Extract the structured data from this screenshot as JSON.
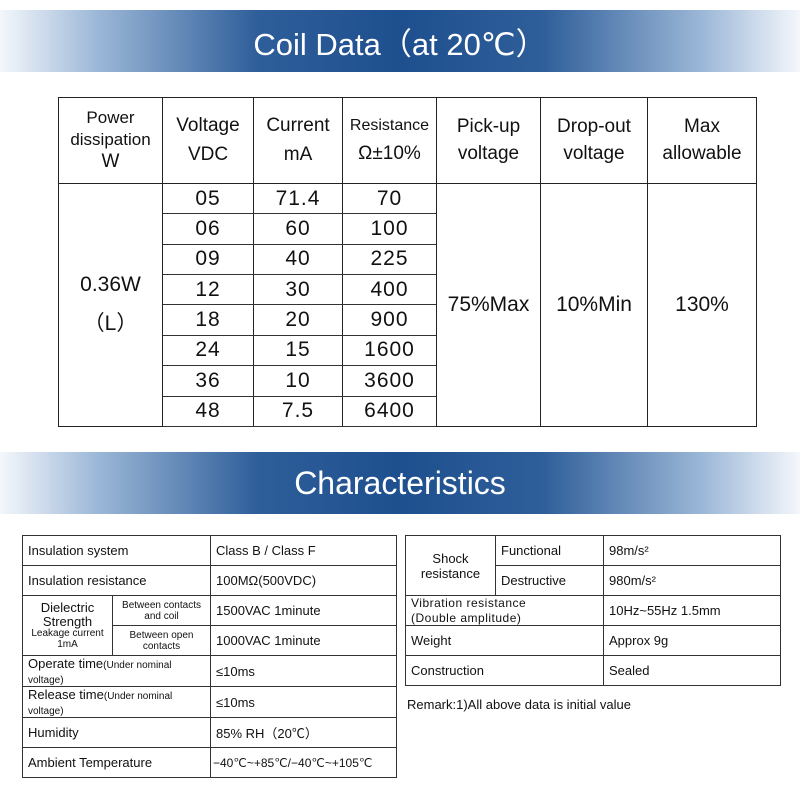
{
  "coil_banner": {
    "title": "Coil Data（at 20℃）"
  },
  "coil_table": {
    "headers": {
      "power_l1": "Power",
      "power_l2": "dissipation",
      "power_l3": "W",
      "voltage_l1": "Voltage",
      "voltage_l2": "VDC",
      "current_l1": "Current",
      "current_l2": "mA",
      "resistance_l1": "Resistance",
      "resistance_l2": "Ω±10%",
      "pickup_l1": "Pick-up",
      "pickup_l2": "voltage",
      "dropout_l1": "Drop-out",
      "dropout_l2": "voltage",
      "max_l1": "Max",
      "max_l2": "allowable"
    },
    "power_value": "0.36W",
    "power_sub": "（L）",
    "pickup_value": "75%Max",
    "dropout_value": "10%Min",
    "max_value": "130%",
    "rows": [
      {
        "voltage": "05",
        "current": "71.4",
        "resistance": "70"
      },
      {
        "voltage": "06",
        "current": "60",
        "resistance": "100"
      },
      {
        "voltage": "09",
        "current": "40",
        "resistance": "225"
      },
      {
        "voltage": "12",
        "current": "30",
        "resistance": "400"
      },
      {
        "voltage": "18",
        "current": "20",
        "resistance": "900"
      },
      {
        "voltage": "24",
        "current": "15",
        "resistance": "1600"
      },
      {
        "voltage": "36",
        "current": "10",
        "resistance": "3600"
      },
      {
        "voltage": "48",
        "current": "7.5",
        "resistance": "6400"
      }
    ]
  },
  "char_banner": {
    "title": "Characteristics"
  },
  "char_left": {
    "insulation_system": {
      "label": "Insulation system",
      "value": "Class B / Class F"
    },
    "insulation_resistance": {
      "label": "Insulation resistance",
      "value": "100MΩ(500VDC)"
    },
    "dielectric": {
      "label_l1": "Dielectric",
      "label_l2": "Strength",
      "leak_l1": "Leakage current",
      "leak_l2": "1mA",
      "contacts_coil_l1": "Between contacts",
      "contacts_coil_l2": "and coil",
      "contacts_coil_value": "1500VAC 1minute",
      "open_contacts_l1": "Between open",
      "open_contacts_l2": "contacts",
      "open_contacts_value": "1000VAC 1minute"
    },
    "operate": {
      "label": "Operate time",
      "label_small": "(Under nominal voltage)",
      "value": "≤10ms"
    },
    "release": {
      "label": "Release time",
      "label_small": "(Under nominal voltage)",
      "value": "≤10ms"
    },
    "humidity": {
      "label": "Humidity",
      "value": "85% RH（20℃）"
    },
    "ambient": {
      "label": "Ambient Temperature",
      "value": "−40℃~+85℃/−40℃~+105℃"
    }
  },
  "char_right": {
    "shock": {
      "label_l1": "Shock",
      "label_l2": "resistance",
      "functional_label": "Functional",
      "functional_value": "98m/s²",
      "destructive_label": "Destructive",
      "destructive_value": "980m/s²"
    },
    "vibration": {
      "label_l1": "Vibration resistance",
      "label_l2": "(Double amplitude)",
      "value": "10Hz~55Hz 1.5mm"
    },
    "weight": {
      "label": "Weight",
      "value": "Approx 9g"
    },
    "construction": {
      "label": "Construction",
      "value": "Sealed"
    }
  },
  "remark": "Remark:1)All above data is initial value"
}
